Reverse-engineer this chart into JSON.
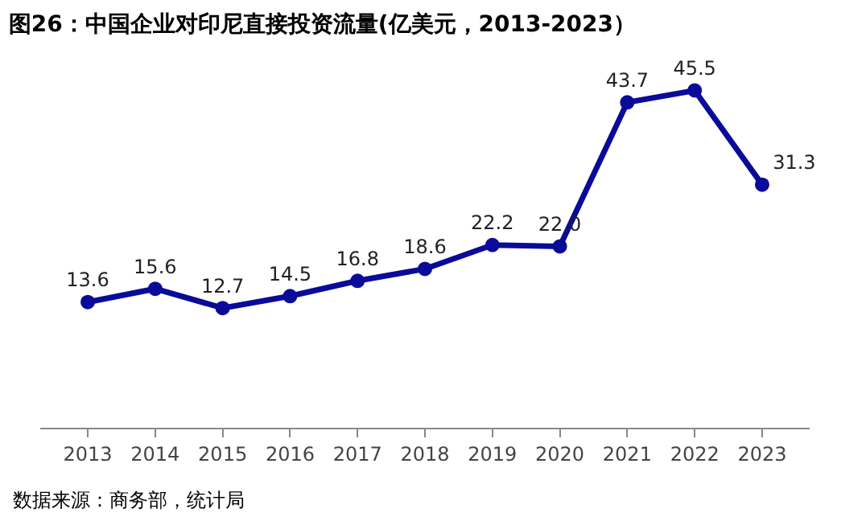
{
  "chart_data": {
    "type": "line",
    "title": "图26：中国企业对印尼直接投资流量(亿美元，2013-2023）",
    "categories": [
      "2013",
      "2014",
      "2015",
      "2016",
      "2017",
      "2018",
      "2019",
      "2020",
      "2021",
      "2022",
      "2023"
    ],
    "series": [
      {
        "color": "#0b0b99",
        "values": [
          13.6,
          15.6,
          12.7,
          14.5,
          16.8,
          18.6,
          22.2,
          22.0,
          43.7,
          45.5,
          31.3
        ],
        "value_labels": [
          "13.6",
          "15.6",
          "12.7",
          "14.5",
          "16.8",
          "18.6",
          "22.2",
          "22.0",
          "43.7",
          "45.5",
          "31.3"
        ]
      }
    ],
    "marker": "circle",
    "line_style": "solid",
    "grid": false,
    "legend": false,
    "annotations": [
      "数据来源：商务部，统计局"
    ]
  }
}
